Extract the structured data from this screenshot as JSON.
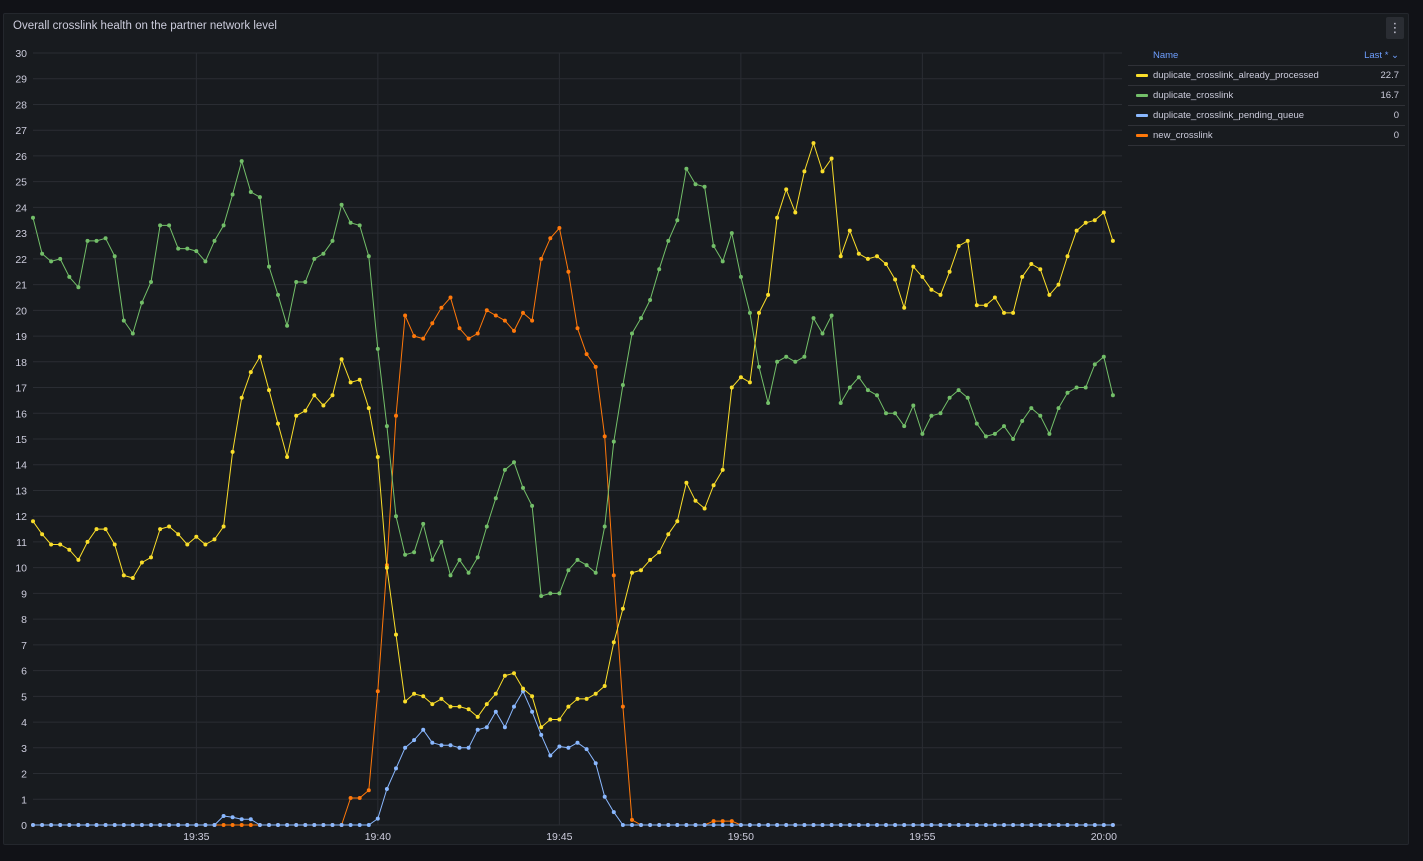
{
  "panel": {
    "title": "Overall crosslink health on the partner network level",
    "menu_icon": "more-vertical-icon"
  },
  "legend": {
    "header_name": "Name",
    "header_last": "Last * ⌄",
    "rows": [
      {
        "name": "duplicate_crosslink_already_processed",
        "last": "22.7",
        "color": "#fade2a"
      },
      {
        "name": "duplicate_crosslink",
        "last": "16.7",
        "color": "#73bf69"
      },
      {
        "name": "duplicate_crosslink_pending_queue",
        "last": "0",
        "color": "#8ab8ff"
      },
      {
        "name": "new_crosslink",
        "last": "0",
        "color": "#ff780a"
      }
    ]
  },
  "chart_data": {
    "type": "line",
    "ylim": [
      0,
      30
    ],
    "yticks": [
      0,
      1,
      2,
      3,
      4,
      5,
      6,
      7,
      8,
      9,
      10,
      11,
      12,
      13,
      14,
      15,
      16,
      17,
      18,
      19,
      20,
      21,
      22,
      23,
      24,
      25,
      26,
      27,
      28,
      29,
      30
    ],
    "xlim": [
      "19:30:30",
      "20:00:30"
    ],
    "xtick_labels": [
      "19:35",
      "19:40",
      "19:45",
      "19:50",
      "19:55",
      "20:00"
    ],
    "x_step_seconds": 15,
    "grid": true,
    "series": [
      {
        "name": "duplicate_crosslink_already_processed",
        "color": "#fade2a",
        "values": [
          11.8,
          11.3,
          10.9,
          10.9,
          10.7,
          10.3,
          11.0,
          11.5,
          11.5,
          10.9,
          9.7,
          9.6,
          10.2,
          10.4,
          11.5,
          11.6,
          11.3,
          10.9,
          11.2,
          10.9,
          11.1,
          11.6,
          14.5,
          16.6,
          17.6,
          18.2,
          16.9,
          15.6,
          14.3,
          15.9,
          16.1,
          16.7,
          16.3,
          16.7,
          18.1,
          17.2,
          17.3,
          16.2,
          14.3,
          10.0,
          7.4,
          4.8,
          5.1,
          5.0,
          4.7,
          4.9,
          4.6,
          4.6,
          4.5,
          4.2,
          4.7,
          5.1,
          5.8,
          5.9,
          5.3,
          5.0,
          3.8,
          4.1,
          4.1,
          4.6,
          4.9,
          4.9,
          5.1,
          5.4,
          7.1,
          8.4,
          9.8,
          9.9,
          10.3,
          10.6,
          11.3,
          11.8,
          13.3,
          12.6,
          12.3,
          13.2,
          13.8,
          17.0,
          17.4,
          17.2,
          19.9,
          20.6,
          23.6,
          24.7,
          23.8,
          25.4,
          26.5,
          25.4,
          25.9,
          22.1,
          23.1,
          22.2,
          22.0,
          22.1,
          21.8,
          21.2,
          20.1,
          21.7,
          21.3,
          20.8,
          20.6,
          21.5,
          22.5,
          22.7,
          20.2,
          20.2,
          20.5,
          19.9,
          19.9,
          21.3,
          21.8,
          21.6,
          20.6,
          21.0,
          22.1,
          23.1,
          23.4,
          23.5,
          23.8,
          22.7
        ]
      },
      {
        "name": "duplicate_crosslink",
        "color": "#73bf69",
        "values": [
          23.6,
          22.2,
          21.9,
          22.0,
          21.3,
          20.9,
          22.7,
          22.7,
          22.8,
          22.1,
          19.6,
          19.1,
          20.3,
          21.1,
          23.3,
          23.3,
          22.4,
          22.4,
          22.3,
          21.9,
          22.7,
          23.3,
          24.5,
          25.8,
          24.6,
          24.4,
          21.7,
          20.6,
          19.4,
          21.1,
          21.1,
          22.0,
          22.2,
          22.7,
          24.1,
          23.4,
          23.3,
          22.1,
          18.5,
          15.5,
          12.0,
          10.5,
          10.6,
          11.7,
          10.3,
          11.0,
          9.7,
          10.3,
          9.8,
          10.4,
          11.6,
          12.7,
          13.8,
          14.1,
          13.1,
          12.4,
          8.9,
          9.0,
          9.0,
          9.9,
          10.3,
          10.1,
          9.8,
          11.6,
          14.9,
          17.1,
          19.1,
          19.7,
          20.4,
          21.6,
          22.7,
          23.5,
          25.5,
          24.9,
          24.8,
          22.5,
          21.9,
          23.0,
          21.3,
          19.9,
          17.8,
          16.4,
          18.0,
          18.2,
          18.0,
          18.2,
          19.7,
          19.1,
          19.8,
          16.4,
          17.0,
          17.4,
          16.9,
          16.7,
          16.0,
          16.0,
          15.5,
          16.3,
          15.2,
          15.9,
          16.0,
          16.6,
          16.9,
          16.6,
          15.6,
          15.1,
          15.2,
          15.5,
          15.0,
          15.7,
          16.2,
          15.9,
          15.2,
          16.2,
          16.8,
          17.0,
          17.0,
          17.9,
          18.2,
          16.7
        ]
      },
      {
        "name": "duplicate_crosslink_pending_queue",
        "color": "#8ab8ff",
        "values": [
          0,
          0,
          0,
          0,
          0,
          0,
          0,
          0,
          0,
          0,
          0,
          0,
          0,
          0,
          0,
          0,
          0,
          0,
          0,
          0,
          0,
          0.35,
          0.3,
          0.22,
          0.22,
          0,
          0,
          0,
          0,
          0,
          0,
          0,
          0,
          0,
          0,
          0,
          0,
          0,
          0.25,
          1.4,
          2.2,
          3.0,
          3.3,
          3.7,
          3.2,
          3.1,
          3.1,
          3.0,
          3.0,
          3.7,
          3.8,
          4.4,
          3.8,
          4.6,
          5.2,
          4.4,
          3.5,
          2.7,
          3.05,
          3.0,
          3.2,
          2.95,
          2.4,
          1.1,
          0.5,
          0,
          0,
          0,
          0,
          0,
          0,
          0,
          0,
          0,
          0,
          0,
          0,
          0,
          0,
          0,
          0,
          0,
          0,
          0,
          0,
          0,
          0,
          0,
          0,
          0,
          0,
          0,
          0,
          0,
          0,
          0,
          0,
          0,
          0,
          0,
          0,
          0,
          0,
          0,
          0,
          0,
          0,
          0,
          0,
          0,
          0,
          0,
          0,
          0,
          0,
          0,
          0,
          0,
          0,
          0
        ]
      },
      {
        "name": "new_crosslink",
        "color": "#ff780a",
        "values": [
          0,
          0,
          0,
          0,
          0,
          0,
          0,
          0,
          0,
          0,
          0,
          0,
          0,
          0,
          0,
          0,
          0,
          0,
          0,
          0,
          0,
          0,
          0,
          0,
          0,
          0,
          0,
          0,
          0,
          0,
          0,
          0,
          0,
          0,
          0,
          1.05,
          1.05,
          1.35,
          5.2,
          10.1,
          15.9,
          19.8,
          19.0,
          18.9,
          19.5,
          20.1,
          20.5,
          19.3,
          18.9,
          19.1,
          20.0,
          19.8,
          19.6,
          19.2,
          19.9,
          19.6,
          22.0,
          22.8,
          23.2,
          21.5,
          19.3,
          18.3,
          17.8,
          15.1,
          9.7,
          4.6,
          0.2,
          0,
          0,
          0,
          0,
          0,
          0,
          0,
          0,
          0.15,
          0.15,
          0.15,
          0,
          0,
          0,
          0,
          0,
          0,
          0,
          0,
          0,
          0,
          0,
          0,
          0,
          0,
          0,
          0,
          0,
          0,
          0,
          0,
          0,
          0,
          0,
          0,
          0,
          0,
          0,
          0,
          0,
          0,
          0,
          0,
          0,
          0,
          0,
          0,
          0,
          0,
          0,
          0,
          0,
          0
        ]
      }
    ]
  }
}
